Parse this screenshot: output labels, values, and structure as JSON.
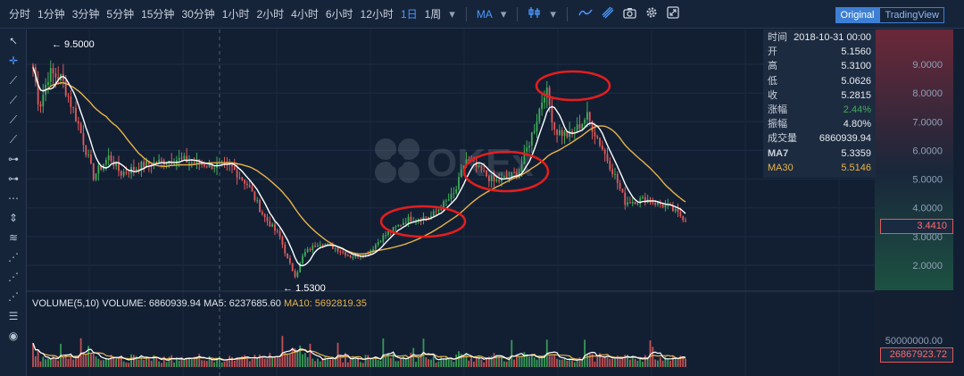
{
  "toolbar": {
    "timeframes": [
      "分时",
      "1分钟",
      "3分钟",
      "5分钟",
      "15分钟",
      "30分钟",
      "1小时",
      "2小时",
      "4小时",
      "6小时",
      "12小时",
      "1日",
      "1周"
    ],
    "active_timeframe": "1日",
    "indicator": "MA",
    "icons": [
      "dropdown-icon",
      "candle-type-icon",
      "line-tool-icon",
      "ruler-icon",
      "camera-icon",
      "gear-icon",
      "fullscreen-icon"
    ],
    "view_original": "Original",
    "view_tradingview": "TradingView"
  },
  "left_tools": [
    "cursor-icon",
    "crosshair-icon",
    "trend-line-icon",
    "ray-icon",
    "extended-line-icon",
    "segment-icon",
    "horizontal-line-icon",
    "horizontal-ray-icon",
    "parallel-channel-icon",
    "vertical-line-icon",
    "fib-retracement-icon",
    "fib-fan-icon",
    "pitchfork-icon",
    "gann-fan-icon",
    "measure-icon",
    "visibility-icon"
  ],
  "info_panel": {
    "rows": [
      {
        "label": "时间",
        "value": "2018-10-31 00:00"
      },
      {
        "label": "开",
        "value": "5.1560"
      },
      {
        "label": "高",
        "value": "5.3100"
      },
      {
        "label": "低",
        "value": "5.0626"
      },
      {
        "label": "收",
        "value": "5.2815"
      },
      {
        "label": "涨幅",
        "value": "2.44%"
      },
      {
        "label": "振幅",
        "value": "4.80%"
      },
      {
        "label": "成交量",
        "value": "6860939.94"
      },
      {
        "label": "MA7",
        "value": "5.3359"
      },
      {
        "label": "MA30",
        "value": "5.5146"
      }
    ]
  },
  "volume_header": {
    "label": "VOLUME(5,10)",
    "volume": "VOLUME: 6860939.94",
    "ma5": "MA5: 6237685.60",
    "ma10": "MA10: 5692819.35"
  },
  "price_tag": "3.4410",
  "volume_tag": "26867923.72",
  "watermark": "OKEx",
  "colors": {
    "up": "#3fae5a",
    "down": "#e05a5a",
    "ma7": "#ffffff",
    "ma30": "#e8b34a",
    "annotation": "#e41e1e",
    "accent": "#4a9bff"
  },
  "chart_data": {
    "type": "candlestick",
    "price_axis": {
      "ticks": [
        2.0,
        3.0,
        4.0,
        5.0,
        6.0,
        7.0,
        8.0,
        9.0
      ],
      "tick_labels": [
        "2.0000",
        "3.0000",
        "4.0000",
        "5.0000",
        "6.0000",
        "7.0000",
        "8.0000",
        "9.0000"
      ],
      "range": [
        1.2,
        10.0
      ]
    },
    "volume_axis": {
      "ticks": [
        50000000
      ],
      "tick_labels": [
        "50000000.00"
      ]
    },
    "annotations": [
      {
        "text": "← 9.5000",
        "kind": "high-marker",
        "price": 9.5
      },
      {
        "text": "← 1.5300",
        "kind": "low-marker",
        "price": 1.53
      }
    ],
    "highlighted_regions": 3,
    "candle_count": 260,
    "price_path": [
      [
        0,
        8.9
      ],
      [
        4,
        7.5
      ],
      [
        10,
        8.7
      ],
      [
        18,
        8.5
      ],
      [
        28,
        7.0
      ],
      [
        38,
        5.1
      ],
      [
        48,
        5.8
      ],
      [
        55,
        5.2
      ],
      [
        70,
        5.5
      ],
      [
        90,
        5.7
      ],
      [
        110,
        5.5
      ],
      [
        125,
        5.4
      ],
      [
        135,
        4.8
      ],
      [
        145,
        3.7
      ],
      [
        155,
        3.0
      ],
      [
        160,
        2.2
      ],
      [
        165,
        1.6
      ],
      [
        170,
        2.4
      ],
      [
        180,
        2.8
      ],
      [
        190,
        2.6
      ],
      [
        200,
        2.3
      ],
      [
        210,
        2.4
      ],
      [
        220,
        3.0
      ],
      [
        235,
        3.6
      ],
      [
        250,
        3.7
      ],
      [
        265,
        4.5
      ],
      [
        272,
        5.7
      ],
      [
        290,
        4.9
      ],
      [
        305,
        5.2
      ],
      [
        315,
        6.8
      ],
      [
        322,
        8.2
      ],
      [
        328,
        6.7
      ],
      [
        338,
        6.5
      ],
      [
        348,
        7.2
      ],
      [
        355,
        6.4
      ],
      [
        365,
        5.2
      ],
      [
        372,
        4.2
      ],
      [
        385,
        4.3
      ],
      [
        400,
        4.0
      ],
      [
        410,
        3.6
      ]
    ]
  }
}
